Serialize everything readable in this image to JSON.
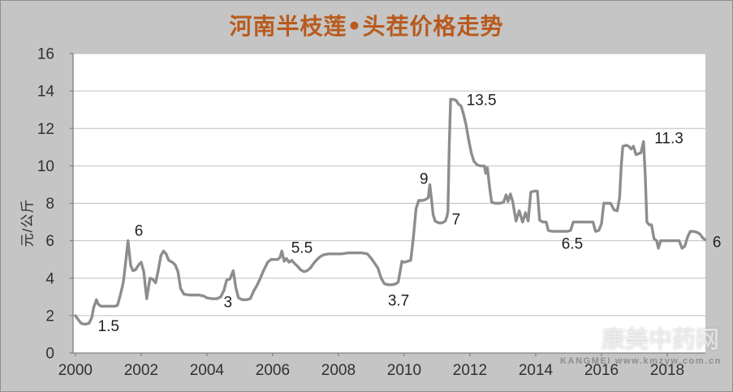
{
  "watermark": {
    "site_name": "康美中药网",
    "caption": "KANGMEI  www.kmzyw.com.cn"
  },
  "colors": {
    "background": "#c5c5c5",
    "plot_background": "#ffffff",
    "title": "#b85a1d",
    "line": "#8d8d8d",
    "gridline": "#bfbfbf",
    "axis": "#7f7f7f",
    "tick_text": "#303030",
    "annotation_text": "#1f1f1f"
  },
  "chart_data": {
    "type": "line",
    "title": "河南半枝莲•头茬价格走势",
    "xlabel": "",
    "ylabel": "元/公斤",
    "x_range": [
      1999.93,
      2019.16
    ],
    "y_range": [
      0,
      16
    ],
    "y_ticks": [
      0,
      2,
      4,
      6,
      8,
      10,
      12,
      14,
      16
    ],
    "x_ticks": [
      2000,
      2002,
      2004,
      2006,
      2008,
      2010,
      2012,
      2014,
      2016,
      2018
    ],
    "grid": "horizontal",
    "legend": "none",
    "series": [
      {
        "name": "河南半枝莲头茬价格(元/公斤)",
        "points": [
          [
            2000.0,
            2.0
          ],
          [
            2000.08,
            1.8
          ],
          [
            2000.17,
            1.6
          ],
          [
            2000.25,
            1.55
          ],
          [
            2000.33,
            1.55
          ],
          [
            2000.42,
            1.6
          ],
          [
            2000.5,
            1.9
          ],
          [
            2000.56,
            2.45
          ],
          [
            2000.64,
            2.85
          ],
          [
            2000.7,
            2.6
          ],
          [
            2000.78,
            2.5
          ],
          [
            2000.9,
            2.5
          ],
          [
            2001.0,
            2.5
          ],
          [
            2001.1,
            2.5
          ],
          [
            2001.2,
            2.5
          ],
          [
            2001.28,
            2.55
          ],
          [
            2001.37,
            3.1
          ],
          [
            2001.46,
            3.8
          ],
          [
            2001.54,
            5.0
          ],
          [
            2001.6,
            6.0
          ],
          [
            2001.68,
            4.7
          ],
          [
            2001.75,
            4.4
          ],
          [
            2001.83,
            4.45
          ],
          [
            2001.92,
            4.7
          ],
          [
            2002.0,
            4.85
          ],
          [
            2002.08,
            4.35
          ],
          [
            2002.17,
            2.9
          ],
          [
            2002.27,
            4.0
          ],
          [
            2002.35,
            3.95
          ],
          [
            2002.44,
            3.75
          ],
          [
            2002.52,
            4.4
          ],
          [
            2002.6,
            5.2
          ],
          [
            2002.68,
            5.45
          ],
          [
            2002.76,
            5.3
          ],
          [
            2002.84,
            4.95
          ],
          [
            2002.95,
            4.85
          ],
          [
            2003.04,
            4.7
          ],
          [
            2003.12,
            4.35
          ],
          [
            2003.2,
            3.45
          ],
          [
            2003.3,
            3.15
          ],
          [
            2003.45,
            3.1
          ],
          [
            2003.6,
            3.1
          ],
          [
            2003.75,
            3.1
          ],
          [
            2003.9,
            3.05
          ],
          [
            2004.0,
            2.95
          ],
          [
            2004.15,
            2.9
          ],
          [
            2004.3,
            2.9
          ],
          [
            2004.42,
            3.0
          ],
          [
            2004.52,
            3.35
          ],
          [
            2004.6,
            3.9
          ],
          [
            2004.7,
            3.95
          ],
          [
            2004.8,
            4.4
          ],
          [
            2004.88,
            3.5
          ],
          [
            2004.96,
            2.95
          ],
          [
            2005.08,
            2.85
          ],
          [
            2005.2,
            2.85
          ],
          [
            2005.32,
            2.9
          ],
          [
            2005.42,
            3.3
          ],
          [
            2005.52,
            3.6
          ],
          [
            2005.6,
            3.9
          ],
          [
            2005.72,
            4.4
          ],
          [
            2005.85,
            4.85
          ],
          [
            2005.95,
            5.0
          ],
          [
            2006.05,
            5.0
          ],
          [
            2006.15,
            5.0
          ],
          [
            2006.22,
            5.1
          ],
          [
            2006.28,
            5.45
          ],
          [
            2006.35,
            4.9
          ],
          [
            2006.42,
            5.05
          ],
          [
            2006.5,
            4.85
          ],
          [
            2006.58,
            4.95
          ],
          [
            2006.66,
            4.8
          ],
          [
            2006.75,
            4.65
          ],
          [
            2006.85,
            4.45
          ],
          [
            2006.95,
            4.35
          ],
          [
            2007.05,
            4.4
          ],
          [
            2007.15,
            4.55
          ],
          [
            2007.25,
            4.8
          ],
          [
            2007.35,
            5.0
          ],
          [
            2007.45,
            5.15
          ],
          [
            2007.55,
            5.25
          ],
          [
            2007.7,
            5.3
          ],
          [
            2007.9,
            5.3
          ],
          [
            2008.1,
            5.3
          ],
          [
            2008.3,
            5.35
          ],
          [
            2008.5,
            5.35
          ],
          [
            2008.7,
            5.35
          ],
          [
            2008.88,
            5.3
          ],
          [
            2009.0,
            5.05
          ],
          [
            2009.1,
            4.8
          ],
          [
            2009.2,
            4.55
          ],
          [
            2009.3,
            4.0
          ],
          [
            2009.4,
            3.7
          ],
          [
            2009.52,
            3.65
          ],
          [
            2009.64,
            3.65
          ],
          [
            2009.75,
            3.7
          ],
          [
            2009.82,
            3.8
          ],
          [
            2009.87,
            4.3
          ],
          [
            2009.93,
            4.9
          ],
          [
            2010.0,
            4.85
          ],
          [
            2010.1,
            4.9
          ],
          [
            2010.2,
            4.95
          ],
          [
            2010.28,
            6.2
          ],
          [
            2010.36,
            7.7
          ],
          [
            2010.44,
            8.15
          ],
          [
            2010.55,
            8.15
          ],
          [
            2010.65,
            8.2
          ],
          [
            2010.73,
            8.3
          ],
          [
            2010.78,
            9.0
          ],
          [
            2010.83,
            8.2
          ],
          [
            2010.88,
            7.4
          ],
          [
            2010.94,
            7.05
          ],
          [
            2011.05,
            6.95
          ],
          [
            2011.15,
            6.95
          ],
          [
            2011.25,
            7.05
          ],
          [
            2011.3,
            7.3
          ],
          [
            2011.33,
            7.55
          ],
          [
            2011.37,
            11.0
          ],
          [
            2011.41,
            13.55
          ],
          [
            2011.5,
            13.55
          ],
          [
            2011.58,
            13.5
          ],
          [
            2011.65,
            13.3
          ],
          [
            2011.73,
            13.2
          ],
          [
            2011.8,
            12.8
          ],
          [
            2011.88,
            12.2
          ],
          [
            2011.96,
            11.4
          ],
          [
            2012.04,
            10.7
          ],
          [
            2012.12,
            10.25
          ],
          [
            2012.22,
            10.05
          ],
          [
            2012.32,
            10.0
          ],
          [
            2012.44,
            10.0
          ],
          [
            2012.48,
            9.6
          ],
          [
            2012.53,
            9.9
          ],
          [
            2012.6,
            8.8
          ],
          [
            2012.66,
            8.05
          ],
          [
            2012.78,
            8.0
          ],
          [
            2012.9,
            8.0
          ],
          [
            2013.02,
            8.05
          ],
          [
            2013.1,
            8.45
          ],
          [
            2013.16,
            8.1
          ],
          [
            2013.23,
            8.5
          ],
          [
            2013.3,
            8.1
          ],
          [
            2013.4,
            7.05
          ],
          [
            2013.5,
            7.6
          ],
          [
            2013.6,
            7.0
          ],
          [
            2013.69,
            7.5
          ],
          [
            2013.77,
            7.05
          ],
          [
            2013.85,
            8.6
          ],
          [
            2013.95,
            8.65
          ],
          [
            2014.05,
            8.65
          ],
          [
            2014.12,
            7.1
          ],
          [
            2014.22,
            7.0
          ],
          [
            2014.32,
            7.0
          ],
          [
            2014.38,
            6.55
          ],
          [
            2014.5,
            6.5
          ],
          [
            2014.65,
            6.5
          ],
          [
            2014.8,
            6.5
          ],
          [
            2014.95,
            6.5
          ],
          [
            2015.06,
            6.55
          ],
          [
            2015.14,
            7.0
          ],
          [
            2015.3,
            7.0
          ],
          [
            2015.45,
            7.0
          ],
          [
            2015.6,
            7.0
          ],
          [
            2015.74,
            7.0
          ],
          [
            2015.82,
            6.5
          ],
          [
            2015.92,
            6.55
          ],
          [
            2016.0,
            6.9
          ],
          [
            2016.07,
            8.0
          ],
          [
            2016.18,
            8.0
          ],
          [
            2016.28,
            8.0
          ],
          [
            2016.38,
            7.65
          ],
          [
            2016.48,
            7.6
          ],
          [
            2016.55,
            8.3
          ],
          [
            2016.6,
            10.0
          ],
          [
            2016.65,
            11.05
          ],
          [
            2016.75,
            11.1
          ],
          [
            2016.83,
            11.05
          ],
          [
            2016.9,
            10.9
          ],
          [
            2016.97,
            11.05
          ],
          [
            2017.05,
            10.6
          ],
          [
            2017.13,
            10.65
          ],
          [
            2017.2,
            10.7
          ],
          [
            2017.28,
            11.3
          ],
          [
            2017.33,
            9.5
          ],
          [
            2017.38,
            7.0
          ],
          [
            2017.45,
            6.85
          ],
          [
            2017.52,
            6.85
          ],
          [
            2017.6,
            6.1
          ],
          [
            2017.68,
            6.0
          ],
          [
            2017.73,
            5.6
          ],
          [
            2017.8,
            6.0
          ],
          [
            2017.95,
            6.0
          ],
          [
            2018.1,
            6.0
          ],
          [
            2018.25,
            6.0
          ],
          [
            2018.36,
            6.0
          ],
          [
            2018.45,
            5.6
          ],
          [
            2018.53,
            5.7
          ],
          [
            2018.62,
            6.2
          ],
          [
            2018.7,
            6.5
          ],
          [
            2018.8,
            6.5
          ],
          [
            2018.9,
            6.45
          ],
          [
            2019.0,
            6.35
          ],
          [
            2019.08,
            6.15
          ],
          [
            2019.15,
            6.05
          ]
        ]
      }
    ],
    "annotations": [
      {
        "label": "1.5",
        "x": 2001.01,
        "y": 1.45
      },
      {
        "label": "6",
        "x": 2001.93,
        "y": 6.55
      },
      {
        "label": "3",
        "x": 2004.64,
        "y": 2.73
      },
      {
        "label": "5.5",
        "x": 2006.89,
        "y": 5.64
      },
      {
        "label": "3.7",
        "x": 2009.83,
        "y": 2.82
      },
      {
        "label": "9",
        "x": 2010.6,
        "y": 9.32
      },
      {
        "label": "7",
        "x": 2011.58,
        "y": 7.15
      },
      {
        "label": "13.5",
        "x": 2012.35,
        "y": 13.53
      },
      {
        "label": "6.5",
        "x": 2015.11,
        "y": 5.85
      },
      {
        "label": "11.3",
        "x": 2018.05,
        "y": 11.49
      },
      {
        "label": "6",
        "x": 2019.51,
        "y": 5.94
      }
    ]
  }
}
